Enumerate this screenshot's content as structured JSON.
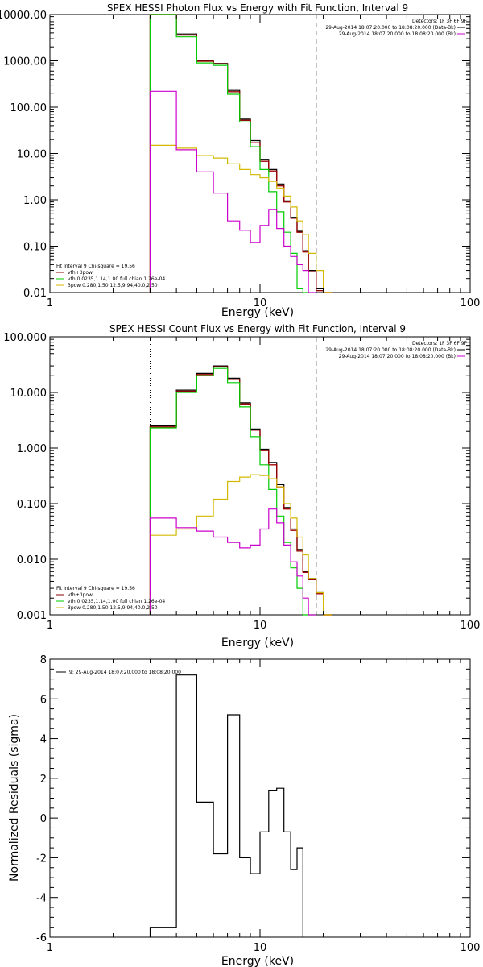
{
  "chart_data": [
    {
      "type": "line",
      "title": "SPEX HESSI Photon Flux vs Energy with Fit Function, Interval 9",
      "xlabel": "Energy (keV)",
      "ylabel": "",
      "xscale": "log",
      "yscale": "log",
      "xlim": [
        1,
        100
      ],
      "ylim": [
        0.01,
        10000
      ],
      "xticks": [
        {
          "v": 1,
          "label": "1"
        },
        {
          "v": 10,
          "label": "10"
        },
        {
          "v": 100,
          "label": "100"
        }
      ],
      "yticks": [
        {
          "v": 0.01,
          "label": "0.01"
        },
        {
          "v": 0.1,
          "label": "0.10"
        },
        {
          "v": 1,
          "label": "1.00"
        },
        {
          "v": 10,
          "label": "10.00"
        },
        {
          "v": 100,
          "label": "100.00"
        },
        {
          "v": 1000,
          "label": "1000.00"
        },
        {
          "v": 10000,
          "label": "10000.00"
        }
      ],
      "vlines": [
        {
          "x": 3.0,
          "style": "dotted"
        },
        {
          "x": 18.5,
          "style": "dashed"
        }
      ],
      "bin_edges": [
        3.0,
        4.0,
        5.0,
        6.0,
        7.0,
        8.0,
        9.0,
        10.0,
        11.0,
        12.0,
        13.0,
        14.0,
        15.0,
        16.0,
        17.0,
        18.5,
        20.0,
        22.0
      ],
      "series": [
        {
          "name": "",
          "color": "#000000",
          "values": [
            10000,
            3800,
            1000,
            880,
            230,
            55,
            19,
            7.5,
            4.5,
            2.2,
            0.95,
            0.42,
            0.21,
            0.08,
            0.03,
            0.012,
            0.0
          ]
        },
        {
          "name": "",
          "color": "#ff0000",
          "values": [
            10000,
            3600,
            980,
            860,
            215,
            52,
            17,
            6.8,
            4.2,
            2.0,
            0.9,
            0.4,
            0.2,
            0.075,
            0.028,
            0.011,
            0.0
          ]
        },
        {
          "name": "vth+3pow",
          "color": "#8b0000",
          "values": [
            10000,
            3600,
            980,
            860,
            215,
            52,
            17,
            6.8,
            4.2,
            2.0,
            0.9,
            0.4,
            0.2,
            0.075,
            0.028,
            0.011,
            0.0
          ]
        },
        {
          "name": "vth 0.0235,1.14,1.00  full chian 1.26e-04",
          "color": "#00cc00",
          "values": [
            10000,
            3300,
            900,
            800,
            190,
            48,
            14,
            4.5,
            1.5,
            0.55,
            0.2,
            0.07,
            0.012,
            0.0
          ]
        },
        {
          "name": "3pow 0.280,1.50,12.5,9.94,40.0,2.50",
          "color": "#d4b800",
          "values": [
            15,
            13,
            9,
            8,
            6,
            4.5,
            3.5,
            3.0,
            2.5,
            1.8,
            1.2,
            0.7,
            0.35,
            0.18,
            0.07,
            0.03,
            0.0
          ]
        },
        {
          "name": "",
          "color": "#cc00cc",
          "values": [
            220,
            12,
            4,
            1.4,
            0.35,
            0.22,
            0.12,
            0.28,
            0.62,
            0.24,
            0.1,
            0.06,
            0.04,
            0.03,
            0.01
          ]
        }
      ],
      "legend_tr": {
        "header": "Detectors: 1F 3F 6F 9F",
        "items": [
          {
            "label": "29-Aug-2014 18:07:20.000 to 18:08:20.000 (Data-Bk)",
            "color": "#000000"
          },
          {
            "label": "29-Aug-2014 18:07:20.000 to 18:08:20.000 (Bk)",
            "color": "#cc00cc"
          }
        ]
      },
      "legend_bl": {
        "header": "Fit Interval 9   Chi-square = 19.56",
        "items": [
          {
            "label": "vth+3pow",
            "color": "#8b0000"
          },
          {
            "label": "vth 0.0235,1.14,1.00  full chian 1.26e-04",
            "color": "#00cc00"
          },
          {
            "label": "3pow 0.280,1.50,12.5,9.94,40.0,2.50",
            "color": "#d4b800"
          }
        ]
      }
    },
    {
      "type": "line",
      "title": "SPEX HESSI Count Flux vs Energy with Fit Function, Interval 9",
      "xlabel": "Energy (keV)",
      "ylabel": "",
      "xscale": "log",
      "yscale": "log",
      "xlim": [
        1,
        100
      ],
      "ylim": [
        0.001,
        100
      ],
      "xticks": [
        {
          "v": 1,
          "label": "1"
        },
        {
          "v": 10,
          "label": "10"
        },
        {
          "v": 100,
          "label": "100"
        }
      ],
      "yticks": [
        {
          "v": 0.001,
          "label": "0.001"
        },
        {
          "v": 0.01,
          "label": "0.010"
        },
        {
          "v": 0.1,
          "label": "0.100"
        },
        {
          "v": 1,
          "label": "1.000"
        },
        {
          "v": 10,
          "label": "10.000"
        },
        {
          "v": 100,
          "label": "100.000"
        }
      ],
      "vlines": [
        {
          "x": 3.0,
          "style": "dotted"
        },
        {
          "x": 18.5,
          "style": "dashed"
        }
      ],
      "bin_edges": [
        3.0,
        4.0,
        5.0,
        6.0,
        7.0,
        8.0,
        9.0,
        10.0,
        11.0,
        12.0,
        13.0,
        14.0,
        15.0,
        16.0,
        17.0,
        18.5,
        20.0,
        22.0
      ],
      "series": [
        {
          "name": "",
          "color": "#000000",
          "values": [
            2.5,
            11,
            22,
            30,
            18,
            6.5,
            2.2,
            0.95,
            0.55,
            0.22,
            0.085,
            0.035,
            0.015,
            0.006,
            0.0045,
            0.0025,
            0.0
          ]
        },
        {
          "name": "",
          "color": "#ff0000",
          "values": [
            2.4,
            10.5,
            21,
            29,
            17,
            6.2,
            2.1,
            0.9,
            0.5,
            0.2,
            0.08,
            0.033,
            0.014,
            0.0058,
            0.0043,
            0.0024,
            0.0
          ]
        },
        {
          "name": "vth+3pow",
          "color": "#8b0000",
          "values": [
            2.4,
            10.5,
            21,
            29,
            17,
            6.2,
            2.1,
            0.9,
            0.5,
            0.2,
            0.08,
            0.033,
            0.014,
            0.0058,
            0.0043,
            0.0024,
            0.0
          ]
        },
        {
          "name": "vth 0.0235,1.14,1.00  full chian 1.26e-04",
          "color": "#00cc00",
          "values": [
            2.3,
            10,
            20,
            27,
            15,
            5.5,
            1.6,
            0.5,
            0.18,
            0.06,
            0.02,
            0.007,
            0.003,
            0.001,
            0.0
          ]
        },
        {
          "name": "3pow 0.280,1.50,12.5,9.94,40.0,2.50",
          "color": "#d4b800",
          "values": [
            0.027,
            0.035,
            0.06,
            0.12,
            0.25,
            0.3,
            0.33,
            0.32,
            0.28,
            0.2,
            0.1,
            0.055,
            0.025,
            0.012,
            0.0045,
            0.0025,
            0.0
          ]
        },
        {
          "name": "",
          "color": "#cc00cc",
          "values": [
            0.055,
            0.037,
            0.032,
            0.025,
            0.02,
            0.016,
            0.018,
            0.035,
            0.08,
            0.045,
            0.018,
            0.009,
            0.005,
            0.002,
            0.0
          ]
        }
      ],
      "legend_tr": {
        "header": "Detectors: 1F 3F 6F 9F",
        "items": [
          {
            "label": "29-Aug-2014 18:07:20.000 to 18:08:20.000 (Data-Bk)",
            "color": "#000000"
          },
          {
            "label": "29-Aug-2014 18:07:20.000 to 18:08:20.000 (Bk)",
            "color": "#cc00cc"
          }
        ]
      },
      "legend_bl": {
        "header": "Fit Interval 9   Chi-square = 19.56",
        "items": [
          {
            "label": "vth+3pow",
            "color": "#8b0000"
          },
          {
            "label": "vth 0.0235,1.14,1.00  full chian 1.26e-04",
            "color": "#00cc00"
          },
          {
            "label": "3pow 0.280,1.50,12.5,9.94,40.0,2.50",
            "color": "#d4b800"
          }
        ]
      }
    },
    {
      "type": "line",
      "title": "",
      "xlabel": "Energy (keV)",
      "ylabel": "Normalized Residuals (sigma)",
      "xscale": "log",
      "yscale": "linear",
      "xlim": [
        1,
        100
      ],
      "ylim": [
        -6,
        8
      ],
      "xticks": [
        {
          "v": 1,
          "label": "1"
        },
        {
          "v": 10,
          "label": "10"
        },
        {
          "v": 100,
          "label": "100"
        }
      ],
      "yticks": [
        {
          "v": -6,
          "label": "-6"
        },
        {
          "v": -4,
          "label": "-4"
        },
        {
          "v": -2,
          "label": "-2"
        },
        {
          "v": 0,
          "label": "0"
        },
        {
          "v": 2,
          "label": "2"
        },
        {
          "v": 4,
          "label": "4"
        },
        {
          "v": 6,
          "label": "6"
        },
        {
          "v": 8,
          "label": "8"
        }
      ],
      "vlines": [],
      "bin_edges": [
        3.0,
        4.0,
        5.0,
        6.0,
        7.0,
        8.0,
        9.0,
        10.0,
        11.0,
        12.0,
        13.0,
        14.0,
        15.0,
        16.0,
        17.0,
        18.5
      ],
      "series": [
        {
          "name": "9: 29-Aug-2014 18:07:20.000 to 18:08:20.000",
          "color": "#000000",
          "values": [
            -5.5,
            7.2,
            0.8,
            -1.8,
            5.2,
            -2.0,
            -2.8,
            -0.7,
            1.4,
            1.5,
            -0.7,
            -2.6,
            -1.5
          ]
        }
      ],
      "legend_tl": {
        "items": [
          {
            "label": "9: 29-Aug-2014 18:07:20.000 to 18:08:20.000",
            "color": "#000000"
          }
        ]
      }
    }
  ]
}
